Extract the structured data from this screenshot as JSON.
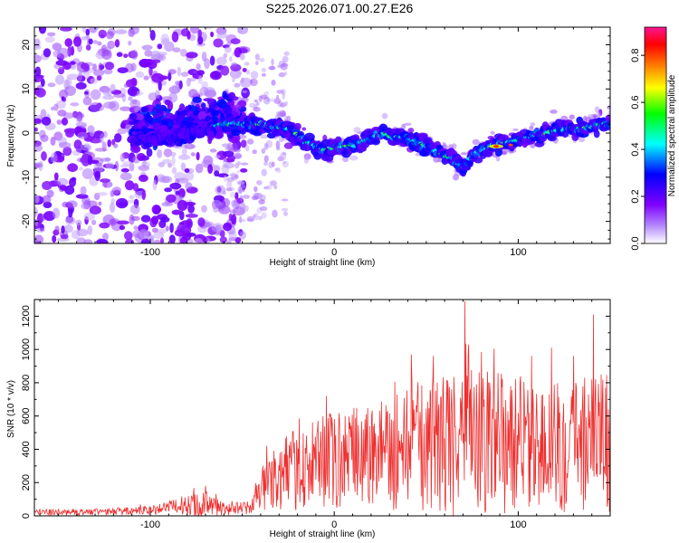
{
  "title": "S225.2026.071.00.27.E26",
  "colors": {
    "snr_line": "#ee3030",
    "frame": "#000000",
    "colormap": [
      "#ffffff",
      "#7f00ff",
      "#0000ff",
      "#00ffff",
      "#00ff00",
      "#ffff00",
      "#ff8000",
      "#ff0000",
      "#ff1493"
    ]
  },
  "chart_data": [
    {
      "id": "spectrogram",
      "type": "heatmap",
      "xlabel": "Height of straight line (km)",
      "ylabel": "Frequency (Hz)",
      "xlim": [
        -163,
        150
      ],
      "ylim": [
        -25,
        24
      ],
      "xticks": [
        -100,
        0,
        100
      ],
      "xtick_labels": [
        "-100",
        "0",
        "100"
      ],
      "yticks": [
        -20,
        -10,
        0,
        10,
        20
      ],
      "ytick_labels": [
        "-20",
        "-10",
        "0",
        "10",
        "20"
      ],
      "colorbar": {
        "label": "Normalized spectral amplitude",
        "range": [
          0.0,
          0.92
        ],
        "ticks": [
          0.0,
          0.2,
          0.4,
          0.6,
          0.8
        ],
        "tick_labels": [
          "0.0",
          "0.2",
          "0.4",
          "0.6",
          "0.8"
        ]
      },
      "ridge": {
        "x": [
          -100,
          -80,
          -60,
          -40,
          -25,
          -15,
          -5,
          5,
          15,
          25,
          35,
          45,
          55,
          65,
          70,
          75,
          85,
          95,
          105,
          115,
          125,
          135,
          145,
          150
        ],
        "freq": [
          -1,
          0,
          2,
          2,
          1,
          -2,
          -4,
          -3,
          -2,
          0,
          -1,
          -2,
          -4,
          -6,
          -8,
          -5,
          -3,
          -2,
          -1,
          0,
          1,
          1,
          2,
          2
        ]
      },
      "peak": {
        "x": 88,
        "freq": -3,
        "amplitude": 0.9
      }
    },
    {
      "id": "snr",
      "type": "line",
      "xlabel": "Height of straight line (km)",
      "ylabel": "SNR (10 * v/v)",
      "xlim": [
        -163,
        150
      ],
      "ylim": [
        0,
        1300
      ],
      "xticks": [
        -100,
        0,
        100
      ],
      "xtick_labels": [
        "-100",
        "0",
        "100"
      ],
      "yticks": [
        0,
        200,
        400,
        600,
        800,
        1000,
        1200
      ],
      "ytick_labels": [
        "0",
        "200",
        "400",
        "600",
        "800",
        "1000",
        "1200"
      ],
      "envelope": {
        "x": [
          -163,
          -120,
          -95,
          -80,
          -72,
          -60,
          -45,
          -40,
          -35,
          -20,
          0,
          20,
          40,
          60,
          80,
          100,
          120,
          140,
          150
        ],
        "mean": [
          20,
          25,
          40,
          70,
          80,
          40,
          50,
          150,
          220,
          280,
          330,
          370,
          410,
          430,
          440,
          440,
          430,
          430,
          420
        ],
        "amp": [
          20,
          20,
          30,
          60,
          90,
          40,
          40,
          130,
          180,
          250,
          300,
          340,
          380,
          430,
          450,
          420,
          420,
          420,
          400
        ]
      },
      "spikes": [
        {
          "x": 71,
          "y": 1290
        },
        {
          "x": 141,
          "y": 1210
        },
        {
          "x": 73,
          "y": 1030
        },
        {
          "x": 42,
          "y": 970
        },
        {
          "x": 118,
          "y": 1010
        },
        {
          "x": 130,
          "y": 960
        },
        {
          "x": 145,
          "y": 850
        },
        {
          "x": 56,
          "y": 800
        },
        {
          "x": 96,
          "y": 780
        },
        {
          "x": 108,
          "y": 760
        },
        {
          "x": -70,
          "y": 180
        },
        {
          "x": -34,
          "y": 320
        }
      ]
    }
  ]
}
